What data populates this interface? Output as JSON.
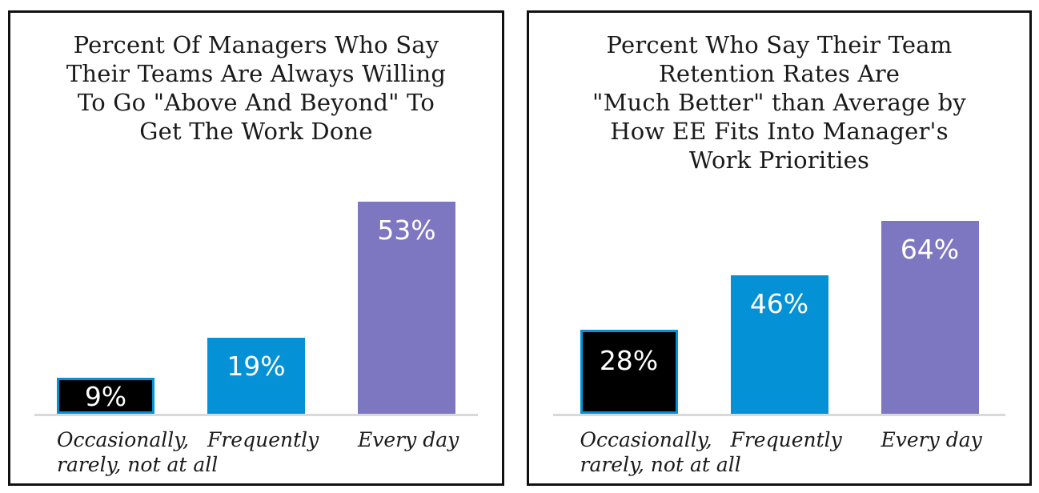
{
  "panel_border_color": "#111111",
  "text_color": "#1a1a1a",
  "chart_data": [
    {
      "type": "bar",
      "title": "Percent Of Managers Who Say\nTheir Teams Are Always Willing\nTo Go \"Above And Beyond\" To\nGet The Work Done",
      "categories": [
        "Occasionally,\nrarely, not at all",
        "Frequently",
        "Every day"
      ],
      "values": [
        9,
        19,
        53
      ],
      "value_labels": [
        "9%",
        "19%",
        "53%"
      ],
      "ylim": [
        0,
        53
      ],
      "grid": false,
      "legend": false,
      "bar_colors": [
        "#000000",
        "#0591d6",
        "#7d77c2"
      ],
      "bar_border_colors": [
        "#0591d6",
        null,
        null
      ],
      "value_label_color": "#ffffff",
      "axis_line_color": "#d9d9d9"
    },
    {
      "type": "bar",
      "title": "Percent Who Say Their Team\nRetention Rates Are\n\"Much Better\" than Average by\nHow EE Fits Into Manager's\nWork Priorities",
      "categories": [
        "Occasionally,\nrarely, not at all",
        "Frequently",
        "Every day"
      ],
      "values": [
        28,
        46,
        64
      ],
      "value_labels": [
        "28%",
        "46%",
        "64%"
      ],
      "ylim": [
        0,
        64
      ],
      "grid": false,
      "legend": false,
      "bar_colors": [
        "#000000",
        "#0591d6",
        "#7d77c2"
      ],
      "bar_border_colors": [
        "#0591d6",
        null,
        null
      ],
      "value_label_color": "#ffffff",
      "axis_line_color": "#d9d9d9"
    }
  ]
}
